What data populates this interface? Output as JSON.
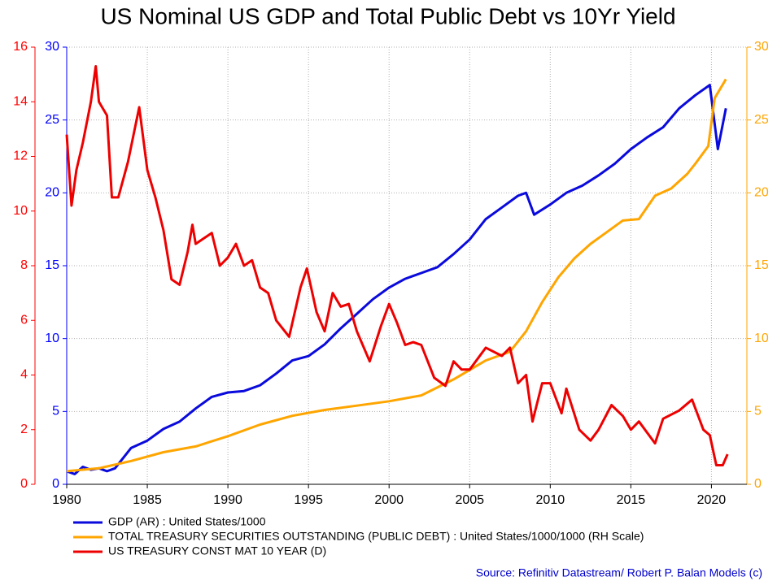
{
  "chart_data": {
    "type": "line",
    "title": "US Nominal US GDP and Total Public Debt vs 10Yr Yield",
    "source": "Source: Refinitiv Datastream/ Robert P. Balan Models (c)",
    "xlim": [
      1980,
      2022.2
    ],
    "xticks": [
      1980,
      1985,
      1990,
      1995,
      2000,
      2005,
      2010,
      2015,
      2020
    ],
    "ylim": [
      0,
      16
    ],
    "yticks": [
      0,
      2,
      4,
      6,
      8,
      10,
      12,
      14,
      16
    ],
    "ycolor": "#ff0000",
    "y3lim": [
      0,
      30
    ],
    "y3ticks": [
      0,
      5,
      10,
      15,
      20,
      25,
      30
    ],
    "y3color": "#0000ff",
    "y2lim": [
      0,
      30
    ],
    "y2ticks": [
      0,
      5,
      10,
      15,
      20,
      25,
      30
    ],
    "y2color": "#ffa500",
    "grid": true,
    "legend": "bottom",
    "series": [
      {
        "name": "GDP (AR) : United States/1000",
        "color": "#0a0adc",
        "axis": "y3",
        "x": [
          1980,
          1980.5,
          1981,
          1981.5,
          1982,
          1982.5,
          1983,
          1984,
          1985,
          1986,
          1987,
          1988,
          1989,
          1990,
          1991,
          1992,
          1993,
          1994,
          1995,
          1996,
          1997,
          1998,
          1999,
          2000,
          2001,
          2002,
          2003,
          2004,
          2005,
          2006,
          2007,
          2008,
          2008.5,
          2009,
          2010,
          2011,
          2012,
          2013,
          2014,
          2015,
          2016,
          2017,
          2018,
          2019,
          2019.9,
          2020.4,
          2020.9
        ],
        "values": [
          0.9,
          0.7,
          1.2,
          1.0,
          1.1,
          0.9,
          1.1,
          2.5,
          3.0,
          3.8,
          4.3,
          5.2,
          6.0,
          6.3,
          6.4,
          6.8,
          7.6,
          8.5,
          8.8,
          9.6,
          10.7,
          11.7,
          12.7,
          13.5,
          14.1,
          14.5,
          14.9,
          15.8,
          16.8,
          18.2,
          19.0,
          19.8,
          20.0,
          18.5,
          19.2,
          20.0,
          20.5,
          21.2,
          22.0,
          23.0,
          23.8,
          24.5,
          25.8,
          26.7,
          27.4,
          23.0,
          25.8
        ]
      },
      {
        "name": "TOTAL TREASURY SECURITIES OUTSTANDING (PUBLIC DEBT) : United States/1000/1000 (RH Scale)",
        "color": "#ffa500",
        "axis": "y2",
        "x": [
          1980,
          1982,
          1984,
          1986,
          1988,
          1990,
          1992,
          1994,
          1996,
          1998,
          2000,
          2002,
          2004,
          2006,
          2007.5,
          2008.5,
          2009.5,
          2010.5,
          2011.5,
          2012.5,
          2013.5,
          2014.5,
          2015.5,
          2016.5,
          2017.5,
          2018.5,
          2019,
          2019.8,
          2020.2,
          2020.9
        ],
        "values": [
          0.9,
          1.1,
          1.6,
          2.2,
          2.6,
          3.3,
          4.1,
          4.7,
          5.1,
          5.4,
          5.7,
          6.1,
          7.2,
          8.5,
          9.1,
          10.5,
          12.5,
          14.2,
          15.5,
          16.5,
          17.3,
          18.1,
          18.2,
          19.8,
          20.3,
          21.3,
          22.0,
          23.2,
          26.5,
          27.8
        ]
      },
      {
        "name": "US TREASURY CONST MAT 10 YEAR (D)",
        "color": "#ee0000",
        "axis": "y",
        "x": [
          1980,
          1980.3,
          1980.6,
          1981,
          1981.5,
          1981.8,
          1982,
          1982.5,
          1982.8,
          1983.2,
          1983.8,
          1984.5,
          1985,
          1985.5,
          1986,
          1986.5,
          1987,
          1987.5,
          1987.8,
          1988,
          1988.5,
          1989,
          1989.5,
          1990,
          1990.5,
          1991,
          1991.5,
          1992,
          1992.5,
          1993,
          1993.8,
          1994.5,
          1994.9,
          1995.5,
          1996,
          1996.5,
          1997,
          1997.5,
          1998,
          1998.8,
          1999.5,
          2000,
          2000.5,
          2001,
          2001.5,
          2002,
          2002.8,
          2003.5,
          2004,
          2004.5,
          2005,
          2006,
          2007,
          2007.5,
          2008,
          2008.5,
          2008.9,
          2009.5,
          2010,
          2010.7,
          2011,
          2011.8,
          2012.5,
          2013,
          2013.8,
          2014.5,
          2015,
          2015.5,
          2016.5,
          2017,
          2018,
          2018.8,
          2019.5,
          2019.9,
          2020.3,
          2020.7,
          2021
        ],
        "values": [
          12.8,
          10.2,
          11.5,
          12.5,
          14.0,
          15.3,
          14.0,
          13.5,
          10.5,
          10.5,
          11.8,
          13.8,
          11.5,
          10.5,
          9.3,
          7.5,
          7.3,
          8.5,
          9.5,
          8.8,
          9.0,
          9.2,
          8.0,
          8.3,
          8.8,
          8.0,
          8.2,
          7.2,
          7.0,
          6.0,
          5.4,
          7.2,
          7.9,
          6.3,
          5.6,
          7.0,
          6.5,
          6.6,
          5.6,
          4.5,
          5.8,
          6.6,
          5.9,
          5.1,
          5.2,
          5.1,
          3.9,
          3.6,
          4.5,
          4.2,
          4.2,
          5.0,
          4.7,
          5.0,
          3.7,
          4.0,
          2.3,
          3.7,
          3.7,
          2.6,
          3.5,
          2.0,
          1.6,
          2.0,
          2.9,
          2.5,
          2.0,
          2.3,
          1.5,
          2.4,
          2.7,
          3.1,
          2.0,
          1.8,
          0.7,
          0.7,
          1.1
        ]
      }
    ]
  }
}
